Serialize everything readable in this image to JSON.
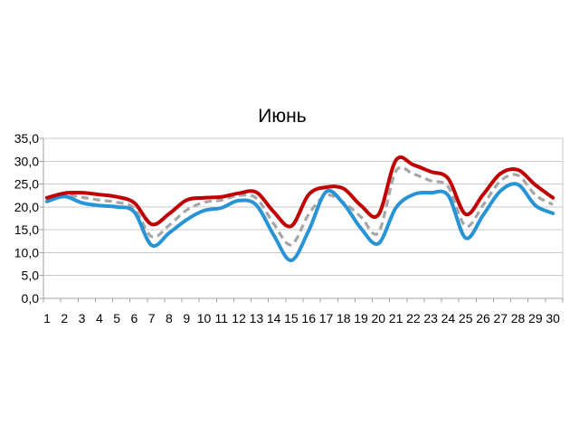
{
  "chart": {
    "title": "Июнь"
  },
  "chart_data": {
    "type": "line",
    "title": "Июнь",
    "xlabel": "",
    "ylabel": "",
    "legend": "none",
    "grid": "horizontal",
    "smooth": true,
    "ylim": [
      0,
      35
    ],
    "categories": [
      "1",
      "2",
      "3",
      "4",
      "5",
      "6",
      "7",
      "8",
      "9",
      "10",
      "11",
      "12",
      "13",
      "14",
      "15",
      "16",
      "17",
      "18",
      "19",
      "20",
      "21",
      "22",
      "23",
      "24",
      "25",
      "26",
      "27",
      "28",
      "29",
      "30"
    ],
    "y_ticks": {
      "values": [
        35,
        30,
        25,
        20,
        15,
        10,
        5,
        0
      ],
      "labels": [
        "35,0",
        "30,0",
        "25,0",
        "20,0",
        "15,0",
        "10,0",
        "5,0",
        "0,0"
      ]
    },
    "series": [
      {
        "name": "max-temperature-red-line",
        "color": "#C00000",
        "style": "solid",
        "width": 4,
        "z": 3,
        "values": [
          22.0,
          23.0,
          23.1,
          22.7,
          22.2,
          20.9,
          16.2,
          18.5,
          21.5,
          22.0,
          22.2,
          23.0,
          23.2,
          18.9,
          15.8,
          22.7,
          24.3,
          24.0,
          20.3,
          18.3,
          30.2,
          29.2,
          27.7,
          26.2,
          18.4,
          22.7,
          27.3,
          28.1,
          24.8,
          22.0
        ]
      },
      {
        "name": "average-temperature-gray-dashed-line",
        "color": "#A6A6A6",
        "style": "dashed",
        "width": 3.2,
        "z": 1,
        "values": [
          21.5,
          22.6,
          22.1,
          21.5,
          21.0,
          19.7,
          13.5,
          16.0,
          19.3,
          21.0,
          21.5,
          22.5,
          21.9,
          16.3,
          11.7,
          18.4,
          22.5,
          21.0,
          17.8,
          14.4,
          27.8,
          27.2,
          25.7,
          24.4,
          15.8,
          20.4,
          25.7,
          26.9,
          22.6,
          20.5
        ]
      },
      {
        "name": "min-temperature-blue-line",
        "color": "#2893D5",
        "style": "solid",
        "width": 4,
        "z": 2,
        "values": [
          21.2,
          22.3,
          20.9,
          20.3,
          20.0,
          18.9,
          11.6,
          14.3,
          17.2,
          19.2,
          19.8,
          21.4,
          20.4,
          13.8,
          8.3,
          14.8,
          23.3,
          20.7,
          15.3,
          12.0,
          19.8,
          22.7,
          23.1,
          22.5,
          13.2,
          18.2,
          23.5,
          24.9,
          20.3,
          18.6
        ]
      }
    ],
    "colors": {
      "grid": "#C9C9C9",
      "axis": "#A3A3A3",
      "labels": "#000000",
      "title": "#000000",
      "background": "#FFFFFF"
    }
  }
}
